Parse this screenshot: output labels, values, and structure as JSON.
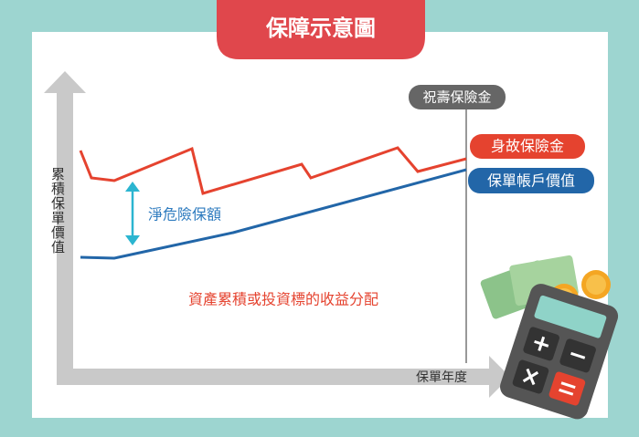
{
  "title": "保障示意圖",
  "labels": {
    "maturity": "祝壽保險金",
    "death": "身故保險金",
    "account": "保單帳戶價值",
    "net_risk": "淨危險保額",
    "y_axis": "累積保單價值",
    "x_axis": "保單年度",
    "note": "資產累積或投資標的收益分配"
  }
}
